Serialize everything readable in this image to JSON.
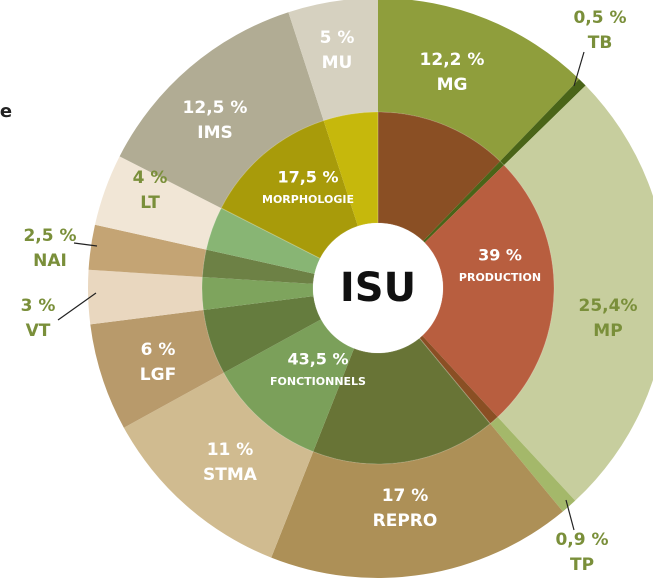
{
  "chart_data": {
    "type": "sunburst",
    "partial_text": "e",
    "center_label": "ISU",
    "outer": {
      "categories": [
        "MG",
        "TB",
        "MP",
        "TP",
        "REPRO",
        "STMA",
        "LGF",
        "VT",
        "NAI",
        "LT",
        "IMS",
        "MU"
      ],
      "values": [
        12.2,
        0.5,
        25.4,
        0.9,
        17,
        11,
        6,
        3,
        2.5,
        4,
        12.5,
        5
      ],
      "value_labels": [
        "12,2 %",
        "0,5 %",
        "25,4%",
        "0,9 %",
        "17 %",
        "11 %",
        "6 %",
        "3 %",
        "2,5 %",
        "4 %",
        "12,5 %",
        "5 %"
      ],
      "colors": [
        "#8f9e3c",
        "#4a6418",
        "#c7ce9e",
        "#a4b86a",
        "#ad9057",
        "#d0bb90",
        "#b89a6b",
        "#e9d7bf",
        "#c4a474",
        "#f1e6d6",
        "#b1ac94",
        "#d6d1c0"
      ],
      "inner_colors": [
        "#8a4f24",
        "#4a6418",
        "#b85e3f",
        "#8a4f24",
        "#687436",
        "#7ba05a",
        "#657c3e",
        "#7ea45d",
        "#6d8145",
        "#88b574",
        "#a89b0a",
        "#c6b80c"
      ]
    },
    "inner": {
      "categories": [
        "PRODUCTION",
        "FONCTIONNELS",
        "MORPHOLOGIE"
      ],
      "values": [
        39,
        43.5,
        17.5
      ],
      "value_labels": [
        "39 %",
        "43,5 %",
        "17,5 %"
      ]
    }
  }
}
